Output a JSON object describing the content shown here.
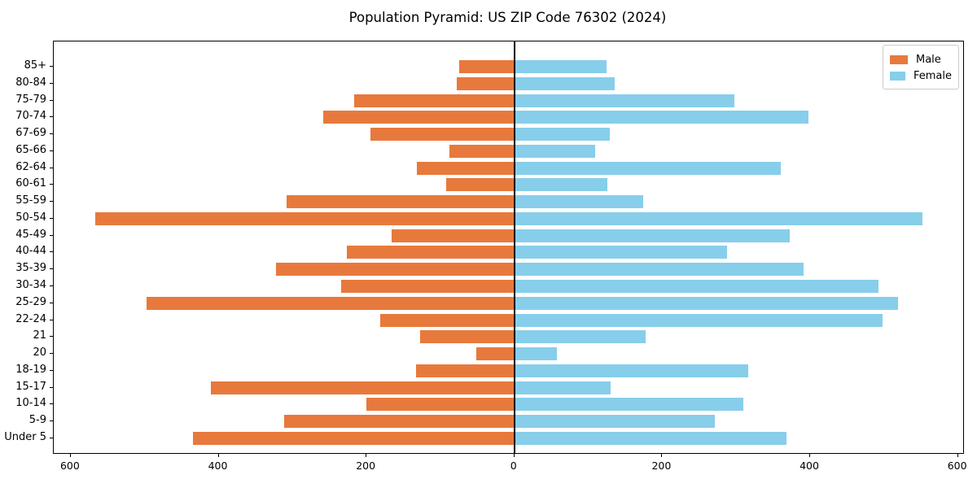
{
  "title": "Population Pyramid: US ZIP Code 76302 (2024)",
  "legend": {
    "male": "Male",
    "female": "Female"
  },
  "colors": {
    "male": "#e8793c",
    "female": "#87ceeb",
    "axis": "#000000",
    "background": "#ffffff"
  },
  "chart_data": {
    "type": "bar",
    "subtype": "population-pyramid",
    "orientation": "horizontal",
    "title": "Population Pyramid: US ZIP Code 76302 (2024)",
    "grid": false,
    "legend_position": "upper-right",
    "categories_top_to_bottom": [
      "85+",
      "80-84",
      "75-79",
      "70-74",
      "67-69",
      "65-66",
      "62-64",
      "60-61",
      "55-59",
      "50-54",
      "45-49",
      "40-44",
      "35-39",
      "30-34",
      "25-29",
      "22-24",
      "21",
      "20",
      "18-19",
      "15-17",
      "10-14",
      "5-9",
      "Under 5"
    ],
    "series": [
      {
        "name": "Male",
        "side": "left",
        "color": "#e8793c",
        "values": [
          75,
          78,
          217,
          259,
          195,
          88,
          132,
          92,
          308,
          567,
          166,
          227,
          322,
          234,
          497,
          181,
          128,
          51,
          133,
          410,
          200,
          311,
          435
        ]
      },
      {
        "name": "Female",
        "side": "right",
        "color": "#87ceeb",
        "values": [
          125,
          136,
          298,
          398,
          129,
          109,
          360,
          126,
          174,
          552,
          373,
          288,
          391,
          492,
          519,
          498,
          178,
          57,
          316,
          130,
          310,
          271,
          368
        ]
      }
    ],
    "x_tick_values": [
      -600,
      -400,
      -200,
      0,
      200,
      400,
      600
    ],
    "x_tick_labels": [
      "600",
      "400",
      "200",
      "0",
      "200",
      "400",
      "600"
    ],
    "xlim": [
      -623,
      607
    ]
  }
}
